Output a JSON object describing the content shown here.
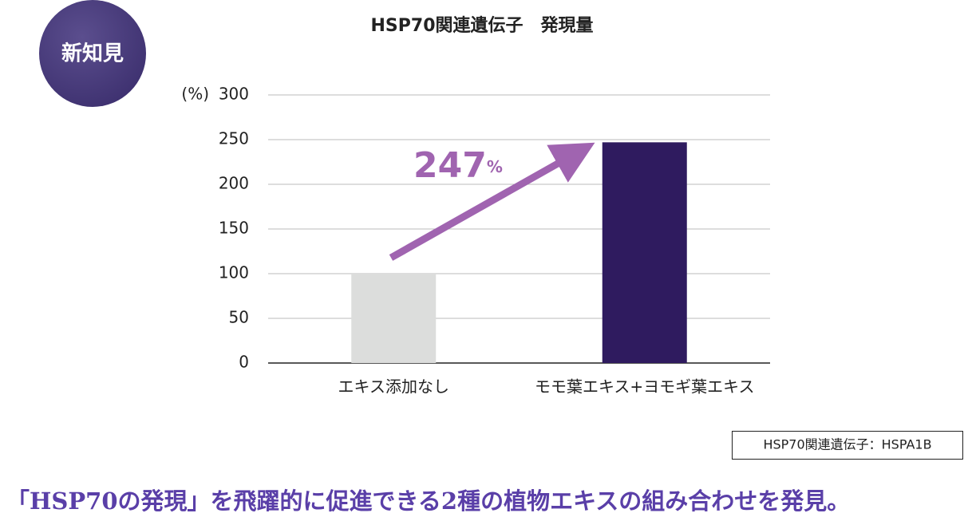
{
  "badge": "新知見",
  "chart_data": {
    "type": "bar",
    "title": "HSP70関連遺伝子　発現量",
    "y_label": "(%)",
    "categories": [
      "エキス添加なし",
      "モモ葉エキス+ヨモギ葉エキス"
    ],
    "values": [
      100,
      247
    ],
    "colors": [
      "#dcdddc",
      "#2f1b5f"
    ],
    "annotation": {
      "text": "247",
      "unit": "%"
    },
    "ylim": [
      0,
      300
    ],
    "yticks": [
      0,
      50,
      100,
      150,
      200,
      250,
      300
    ],
    "grid": true
  },
  "note": "HSP70関連遺伝子：HSPA1B",
  "footer": "「HSP70の発現」を飛躍的に促進できる2種の植物エキスの組み合わせを発見。"
}
